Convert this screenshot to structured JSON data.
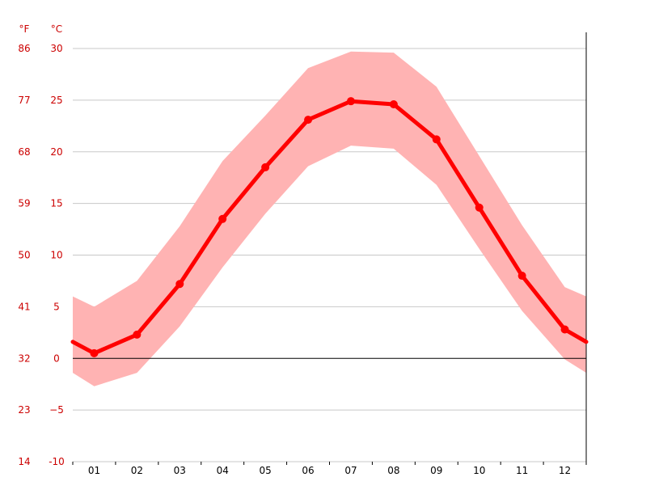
{
  "chart_data": {
    "type": "line",
    "categories": [
      "01",
      "02",
      "03",
      "04",
      "05",
      "06",
      "07",
      "08",
      "09",
      "10",
      "11",
      "12"
    ],
    "y_unit_c": "°C",
    "y_unit_f": "°F",
    "ylim": [
      -10,
      30
    ],
    "yticks_c": [
      "-10",
      "−5",
      "0",
      "5",
      "10",
      "15",
      "20",
      "25",
      "30"
    ],
    "yticks_f": [
      "14",
      "23",
      "32",
      "41",
      "50",
      "59",
      "68",
      "77",
      "86"
    ],
    "yticks_values": [
      -10,
      -5,
      0,
      5,
      10,
      15,
      20,
      25,
      30
    ],
    "grid": true,
    "series": [
      {
        "values": [
          0.5,
          2.3,
          7.2,
          13.5,
          18.5,
          23.1,
          24.9,
          24.6,
          21.2,
          14.6,
          8.0,
          2.8
        ]
      }
    ],
    "band": {
      "low": [
        -2.7,
        -1.4,
        3.1,
        8.8,
        14.0,
        18.6,
        20.6,
        20.3,
        16.8,
        10.6,
        4.6,
        -0.1
      ],
      "high": [
        5.0,
        7.5,
        12.8,
        19.1,
        23.5,
        28.1,
        29.7,
        29.6,
        26.3,
        19.6,
        12.9,
        6.9
      ]
    },
    "edge": {
      "left_value": 1.6,
      "right_value": 1.6,
      "left_low": -1.4,
      "right_low": -1.4,
      "left_high": 6.0,
      "right_high": 6.0
    },
    "colors": {
      "line": "#ff0000",
      "band": "#ffb3b3",
      "grid": "#c8c8c8",
      "zero": "#000000",
      "ytick": "#cc0000",
      "xtick": "#000000"
    }
  }
}
